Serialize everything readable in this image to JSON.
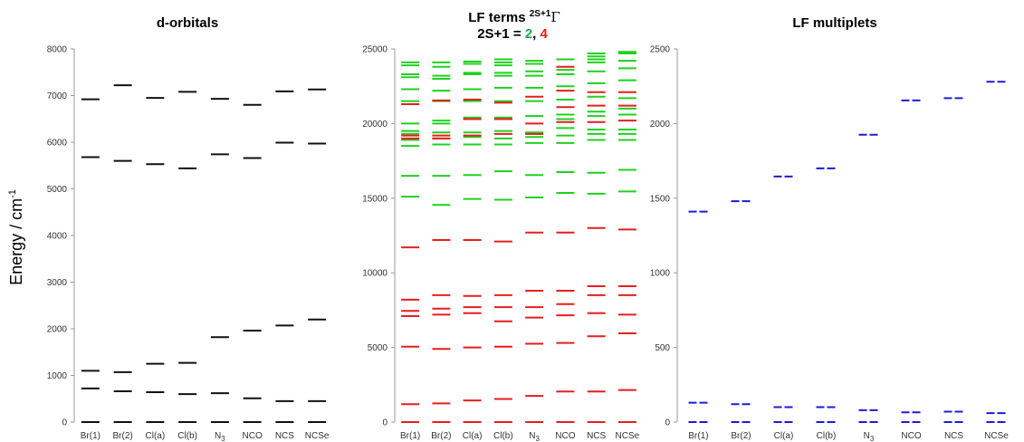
{
  "ylabel": "Energy / cm",
  "ylabel_exp": "-1",
  "colors": {
    "axis": "#999999",
    "tick_text": "#333333",
    "doublet": "#1fd11f",
    "quartet": "#e61e1e",
    "multiplet": "#1c1cd6",
    "orbital": "#111111"
  },
  "chart_data": [
    {
      "type": "bar",
      "title": "d-orbitals",
      "ylabel": "Energy / cm-1",
      "ylim": [
        0,
        8000
      ],
      "yticks": [
        0,
        1000,
        2000,
        3000,
        4000,
        5000,
        6000,
        7000,
        8000
      ],
      "categories": [
        "Br(1)",
        "Br(2)",
        "Cl(a)",
        "Cl(b)",
        "N",
        "NCO",
        "NCS",
        "NCSe"
      ],
      "category_subscripts": [
        "",
        "",
        "",
        "",
        "3",
        "",
        "",
        ""
      ],
      "series": [
        {
          "color": "#111111",
          "levels": [
            [
              0,
              720,
              1100,
              5680,
              6920
            ],
            [
              0,
              660,
              1070,
              5600,
              7220
            ],
            [
              0,
              640,
              1250,
              5530,
              6950
            ],
            [
              0,
              600,
              1270,
              5440,
              7080
            ],
            [
              0,
              620,
              1820,
              5740,
              6930
            ],
            [
              0,
              510,
              1960,
              5660,
              6800
            ],
            [
              0,
              450,
              2070,
              5990,
              7090
            ],
            [
              0,
              450,
              2200,
              5970,
              7130
            ]
          ]
        }
      ]
    },
    {
      "type": "bar",
      "title": "LF terms ",
      "title_sup": "2S+1",
      "title_symbol": "Γ",
      "subtitle_prefix": "2S+1 = ",
      "subtitle_doublet": "2",
      "subtitle_sep": ", ",
      "subtitle_quartet": "4",
      "ylim": [
        0,
        25000
      ],
      "yticks": [
        0,
        5000,
        10000,
        15000,
        20000,
        25000
      ],
      "categories": [
        "Br(1)",
        "Br(2)",
        "Cl(a)",
        "Cl(b)",
        "N",
        "NCO",
        "NCS",
        "NCSe"
      ],
      "category_subscripts": [
        "",
        "",
        "",
        "",
        "3",
        "",
        "",
        ""
      ],
      "series": [
        {
          "name": "2",
          "color": "#1fd11f",
          "levels": [
            [
              15100,
              16500,
              18500,
              18900,
              19300,
              19500,
              20000,
              21500,
              22300,
              23100,
              23300,
              23900,
              24100
            ],
            [
              14550,
              16500,
              18600,
              19000,
              19400,
              20000,
              20200,
              21500,
              22200,
              23000,
              23200,
              23800,
              24100
            ],
            [
              14950,
              16550,
              18600,
              19100,
              19400,
              20300,
              20400,
              21500,
              22300,
              23300,
              23400,
              24000,
              24150
            ],
            [
              14900,
              16800,
              18600,
              19000,
              19500,
              20300,
              20400,
              21500,
              22400,
              23200,
              23400,
              23900,
              24100,
              24300
            ],
            [
              15050,
              16550,
              18700,
              19100,
              19300,
              19400,
              20500,
              21500,
              22400,
              23200,
              23500,
              24000,
              24200
            ],
            [
              15350,
              16750,
              18700,
              19200,
              19700,
              20300,
              20600,
              21600,
              22500,
              23300,
              23600,
              24300
            ],
            [
              15300,
              16700,
              18900,
              19300,
              19600,
              20500,
              20800,
              21800,
              22700,
              23500,
              24100,
              24300,
              24500,
              24700
            ],
            [
              15450,
              16900,
              18900,
              19300,
              19600,
              20600,
              21000,
              21700,
              22900,
              23700,
              24200,
              24700,
              24800
            ]
          ]
        },
        {
          "name": "4",
          "color": "#e61e1e",
          "levels": [
            [
              0,
              1200,
              5050,
              7100,
              7450,
              8200,
              11700,
              19000,
              19200,
              21300
            ],
            [
              0,
              1250,
              4900,
              7200,
              7600,
              8500,
              12200,
              19000,
              19200,
              21550
            ],
            [
              0,
              1450,
              5000,
              7300,
              7700,
              8450,
              12200,
              19200,
              20300,
              21600
            ],
            [
              0,
              1550,
              5050,
              6750,
              7700,
              8500,
              12100,
              19300,
              20300,
              21400
            ],
            [
              0,
              1750,
              5250,
              7000,
              7700,
              8800,
              12700,
              19300,
              20000,
              21800
            ],
            [
              0,
              2050,
              5300,
              7150,
              7900,
              8800,
              12700,
              20100,
              21100,
              22200,
              23800
            ],
            [
              0,
              2050,
              5750,
              7300,
              8500,
              9100,
              13000,
              20100,
              21200,
              22100
            ],
            [
              0,
              2150,
              5950,
              7200,
              8500,
              9100,
              12900,
              20200,
              21200,
              22100
            ]
          ]
        }
      ]
    },
    {
      "type": "bar",
      "title": "LF multiplets",
      "ylim": [
        0,
        2500
      ],
      "yticks": [
        0,
        500,
        1000,
        1500,
        2000,
        2500
      ],
      "categories": [
        "Br(1)",
        "Br(2)",
        "Cl(a)",
        "Cl(b)",
        "N",
        "NCO",
        "NCS",
        "NCSe"
      ],
      "category_subscripts": [
        "",
        "",
        "",
        "",
        "3",
        "",
        "",
        ""
      ],
      "series": [
        {
          "color": "#1c1cd6",
          "levels": [
            [
              0,
              130,
              1410
            ],
            [
              0,
              120,
              1480
            ],
            [
              0,
              100,
              1645
            ],
            [
              0,
              100,
              1700
            ],
            [
              0,
              80,
              1925
            ],
            [
              0,
              65,
              2155
            ],
            [
              0,
              70,
              2170
            ],
            [
              0,
              60,
              2280
            ]
          ]
        }
      ]
    }
  ]
}
